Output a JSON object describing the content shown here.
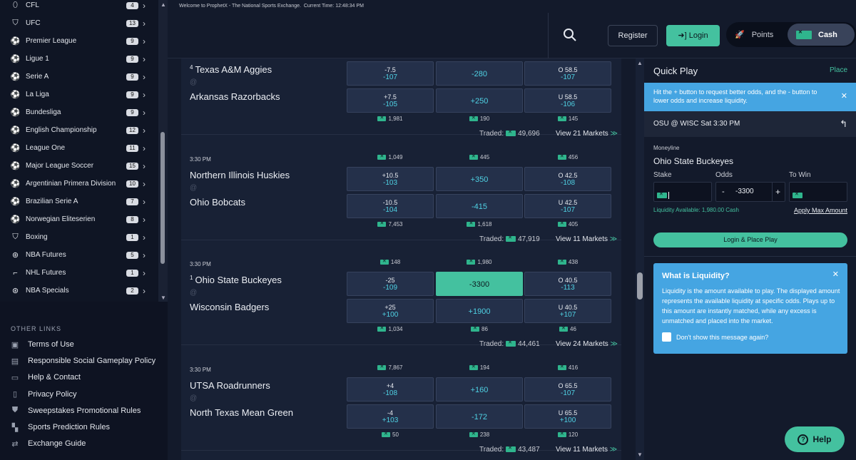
{
  "sidebar": {
    "leagues": [
      {
        "name": "CFL",
        "count": "4",
        "icon": "football-icon"
      },
      {
        "name": "UFC",
        "count": "13",
        "icon": "glove-icon"
      },
      {
        "name": "Premier League",
        "count": "9",
        "icon": "soccer-ball-icon"
      },
      {
        "name": "Ligue 1",
        "count": "9",
        "icon": "soccer-ball-icon"
      },
      {
        "name": "Serie A",
        "count": "9",
        "icon": "soccer-ball-icon"
      },
      {
        "name": "La Liga",
        "count": "9",
        "icon": "soccer-ball-icon"
      },
      {
        "name": "Bundesliga",
        "count": "9",
        "icon": "soccer-ball-icon"
      },
      {
        "name": "English Championship",
        "count": "12",
        "icon": "soccer-ball-icon"
      },
      {
        "name": "League One",
        "count": "11",
        "icon": "soccer-ball-icon"
      },
      {
        "name": "Major League Soccer",
        "count": "15",
        "icon": "soccer-ball-icon"
      },
      {
        "name": "Argentinian Primera Division",
        "count": "10",
        "icon": "soccer-ball-icon"
      },
      {
        "name": "Brazilian Serie A",
        "count": "7",
        "icon": "soccer-ball-icon"
      },
      {
        "name": "Norwegian Eliteserien",
        "count": "8",
        "icon": "soccer-ball-icon"
      },
      {
        "name": "Boxing",
        "count": "1",
        "icon": "glove-icon"
      },
      {
        "name": "NBA Futures",
        "count": "5",
        "icon": "basketball-icon"
      },
      {
        "name": "NHL Futures",
        "count": "1",
        "icon": "hockey-stick-icon"
      },
      {
        "name": "NBA Specials",
        "count": "2",
        "icon": "basketball-icon"
      }
    ],
    "other_links_title": "OTHER LINKS",
    "other_links": [
      {
        "label": "Terms of Use",
        "icon": "terms-icon"
      },
      {
        "label": "Responsible Social Gameplay Policy",
        "icon": "policy-icon"
      },
      {
        "label": "Help & Contact",
        "icon": "chat-icon"
      },
      {
        "label": "Privacy Policy",
        "icon": "document-icon"
      },
      {
        "label": "Sweepstakes Promotional Rules",
        "icon": "shield-icon"
      },
      {
        "label": "Sports Prediction Rules",
        "icon": "rules-icon"
      },
      {
        "label": "Exchange Guide",
        "icon": "exchange-icon"
      }
    ]
  },
  "header": {
    "welcome": "Welcome to ProphetX - The National Sports Exchange.",
    "time_label": "Current Time:",
    "time_value": "12:48:34 PM",
    "register_label": "Register",
    "login_label": "Login",
    "points_label": "Points",
    "cash_label": "Cash"
  },
  "games": [
    {
      "time": "",
      "rank1": "4",
      "team1": "Texas A&M Aggies",
      "at": "@",
      "team2": "Arkansas Razorbacks",
      "liq_top": [
        "",
        "",
        ""
      ],
      "row1": [
        {
          "top": "-7.5",
          "bot": "-107"
        },
        {
          "mid": "-280"
        },
        {
          "top": "O 58.5",
          "bot": "-107"
        }
      ],
      "row2": [
        {
          "top": "+7.5",
          "bot": "-105"
        },
        {
          "mid": "+250"
        },
        {
          "top": "U 58.5",
          "bot": "-106"
        }
      ],
      "liq_bot": [
        "1,981",
        "190",
        "145"
      ],
      "traded_label": "Traded:",
      "traded": "49,696",
      "view": "View 21 Markets"
    },
    {
      "time": "3:30 PM",
      "rank1": "",
      "team1": "Northern Illinois Huskies",
      "at": "@",
      "team2": "Ohio Bobcats",
      "liq_top": [
        "1,049",
        "445",
        "456"
      ],
      "row1": [
        {
          "top": "+10.5",
          "bot": "-103"
        },
        {
          "mid": "+350"
        },
        {
          "top": "O 42.5",
          "bot": "-108"
        }
      ],
      "row2": [
        {
          "top": "-10.5",
          "bot": "-104"
        },
        {
          "mid": "-415"
        },
        {
          "top": "U 42.5",
          "bot": "-107"
        }
      ],
      "liq_bot": [
        "7,453",
        "1,618",
        "405"
      ],
      "traded_label": "Traded:",
      "traded": "47,919",
      "view": "View 11 Markets"
    },
    {
      "time": "3:30 PM",
      "rank1": "1",
      "team1": "Ohio State Buckeyes",
      "at": "@",
      "team2": "Wisconsin Badgers",
      "liq_top": [
        "148",
        "1,980",
        "438"
      ],
      "row1": [
        {
          "top": "-25",
          "bot": "-109"
        },
        {
          "mid": "-3300"
        },
        {
          "top": "O 40.5",
          "bot": "-113"
        }
      ],
      "row2": [
        {
          "top": "+25",
          "bot": "+100"
        },
        {
          "mid": "+1900"
        },
        {
          "top": "U 40.5",
          "bot": "+107"
        }
      ],
      "liq_bot": [
        "1,034",
        "86",
        "46"
      ],
      "traded_label": "Traded:",
      "traded": "44,461",
      "view": "View 24 Markets"
    },
    {
      "time": "3:30 PM",
      "rank1": "",
      "team1": "UTSA Roadrunners",
      "at": "@",
      "team2": "North Texas Mean Green",
      "liq_top": [
        "7,867",
        "194",
        "416"
      ],
      "row1": [
        {
          "top": "+4",
          "bot": "-108"
        },
        {
          "mid": "+160"
        },
        {
          "top": "O 65.5",
          "bot": "-107"
        }
      ],
      "row2": [
        {
          "top": "-4",
          "bot": "+103"
        },
        {
          "mid": "-172"
        },
        {
          "top": "U 65.5",
          "bot": "+100"
        }
      ],
      "liq_bot": [
        "50",
        "238",
        "120"
      ],
      "traded_label": "Traded:",
      "traded": "43,487",
      "view": "View 11 Markets"
    }
  ],
  "quickplay": {
    "title": "Quick Play",
    "place_link": "Place",
    "banner": "Hit the + button to request better odds, and the - button to lower odds and increase liquidity.",
    "game": "OSU @ WISC Sat 3:30 PM",
    "market": "Moneyline",
    "team": "Ohio State Buckeyes",
    "stake_label": "Stake",
    "odds_label": "Odds",
    "towin_label": "To Win",
    "odds_value": "-3300",
    "minus": "-",
    "plus": "+",
    "liquidity": "Liquidity Available: 1,980.00 Cash",
    "apply_max": "Apply Max Amount",
    "place_btn": "Login & Place Play",
    "liq_title": "What is Liquidity?",
    "liq_text": "Liquidity is the amount available to play. The displayed amount represents the available liquidity at specific odds. Plays up to this amount are instantly matched, while any excess is unmatched and placed into the market.",
    "liq_checkbox": "Don't show this message again?"
  },
  "help_label": "Help",
  "colors": {
    "accent": "#44c19f",
    "info": "#45a5e2",
    "odds": "#4fd1e3",
    "bg": "#131a2b"
  }
}
